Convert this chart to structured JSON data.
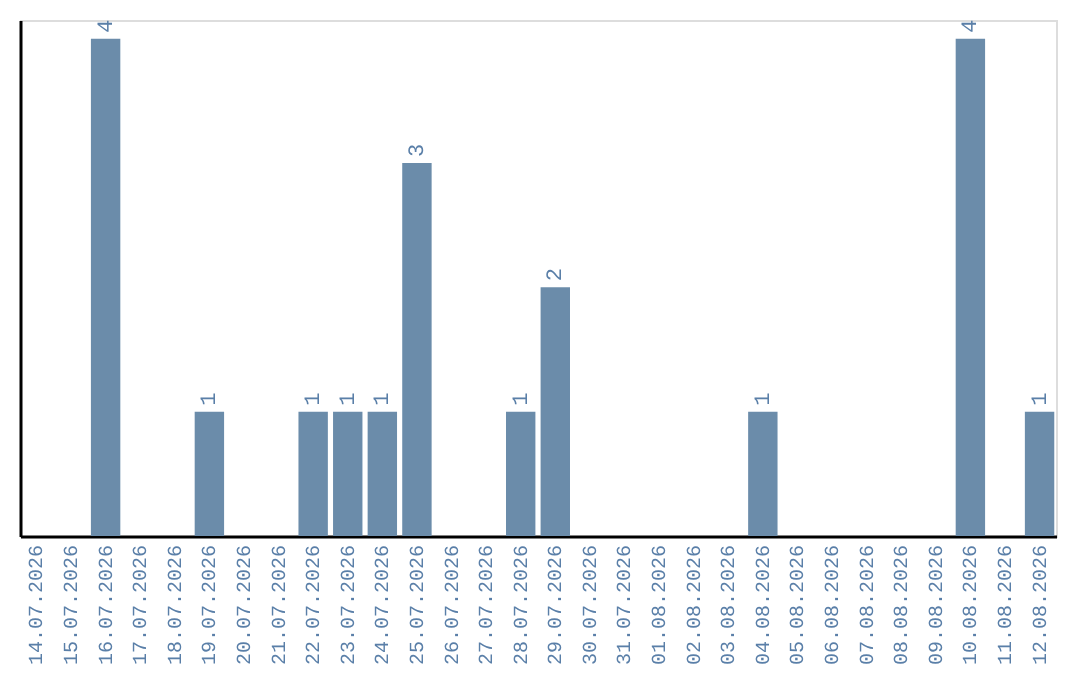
{
  "chart_data": {
    "type": "bar",
    "categories": [
      "14.07.2026",
      "15.07.2026",
      "16.07.2026",
      "17.07.2026",
      "18.07.2026",
      "19.07.2026",
      "20.07.2026",
      "21.07.2026",
      "22.07.2026",
      "23.07.2026",
      "24.07.2026",
      "25.07.2026",
      "26.07.2026",
      "27.07.2026",
      "28.07.2026",
      "29.07.2026",
      "30.07.2026",
      "31.07.2026",
      "01.08.2026",
      "02.08.2026",
      "03.08.2026",
      "04.08.2026",
      "05.08.2026",
      "06.08.2026",
      "07.08.2026",
      "08.08.2026",
      "09.08.2026",
      "10.08.2026",
      "11.08.2026",
      "12.08.2026"
    ],
    "values": [
      0,
      0,
      4,
      0,
      0,
      1,
      0,
      0,
      1,
      1,
      1,
      3,
      0,
      0,
      1,
      2,
      0,
      0,
      0,
      0,
      0,
      1,
      0,
      0,
      0,
      0,
      0,
      4,
      0,
      1
    ],
    "value_labels": [
      null,
      null,
      "4",
      null,
      null,
      "1",
      null,
      null,
      "1",
      "1",
      "1",
      "3",
      null,
      null,
      "1",
      "2",
      null,
      null,
      null,
      null,
      null,
      "1",
      null,
      null,
      null,
      null,
      null,
      "4",
      null,
      "1"
    ],
    "color": "#6b8caa",
    "ylim": [
      0,
      4.15
    ],
    "grid": false
  }
}
